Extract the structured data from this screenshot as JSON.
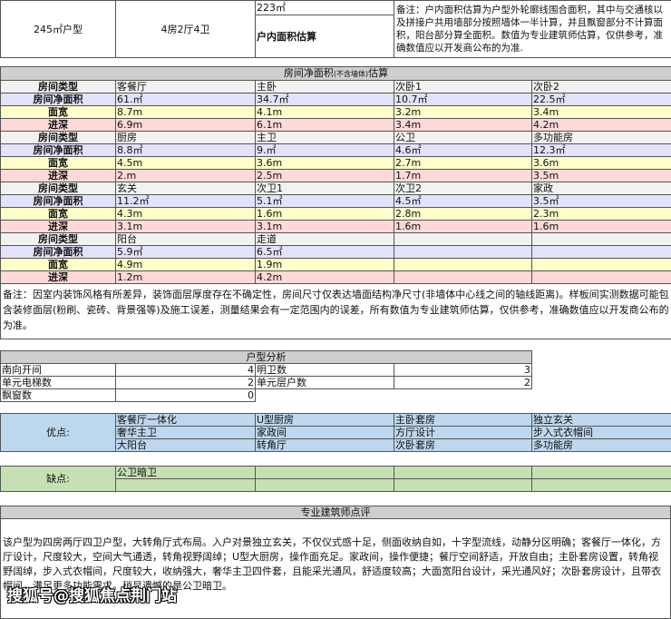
{
  "top": {
    "unit_type": "245㎡户型",
    "layout": "4房2厅4卫",
    "area_value": "223㎡",
    "area_label": "户内面积估算",
    "note": "备注：户内面积估算为户型外轮廓线围合面积，其中与交通核以及拼接户共用墙部分按照墙体一半计算，并且飘窗部分不计算面积，阳台部分算全面积。数值为专业建筑师估算，仅供参考，准确数值应以开发商公布的为准."
  },
  "rooms": {
    "title": "房间净面积",
    "title_small": "(不含墙体)",
    "title_end": "估算",
    "labels": {
      "type": "房间类型",
      "area": "房间净面积",
      "width": "面宽",
      "depth": "进深"
    },
    "groups": [
      {
        "type": [
          "客餐厅",
          "主卧",
          "次卧1",
          "次卧2"
        ],
        "area": [
          "61.㎡",
          "34.7㎡",
          "10.7㎡",
          "22.5㎡"
        ],
        "width": [
          "8.7m",
          "4.1m",
          "3.2m",
          "3.4m"
        ],
        "depth": [
          "6.9m",
          "6.1m",
          "3.4m",
          "4.2m"
        ]
      },
      {
        "type": [
          "厨房",
          "主卫",
          "公卫",
          "多功能房"
        ],
        "area": [
          "8.8㎡",
          "9.㎡",
          "4.6㎡",
          "12.3㎡"
        ],
        "width": [
          "4.5m",
          "3.6m",
          "2.7m",
          "3.6m"
        ],
        "depth": [
          "2.m",
          "2.5m",
          "1.7m",
          "3.5m"
        ]
      },
      {
        "type": [
          "玄关",
          "次卫1",
          "次卫2",
          "家政"
        ],
        "area": [
          "11.2㎡",
          "5.1㎡",
          "4.5㎡",
          "3.5㎡"
        ],
        "width": [
          "4.3m",
          "1.6m",
          "2.8m",
          "2.3m"
        ],
        "depth": [
          "3.1m",
          "3.1m",
          "1.6m",
          "1.6m"
        ]
      },
      {
        "type": [
          "阳台",
          "走道",
          "",
          ""
        ],
        "area": [
          "5.9㎡",
          "6.5㎡",
          "",
          ""
        ],
        "width": [
          "4.9m",
          "1.9m",
          "",
          ""
        ],
        "depth": [
          "1.2m",
          "4.2m",
          "",
          ""
        ]
      }
    ],
    "note": "备注：因室内装饰风格有所差异，装饰面层厚度存在不确定性，房间尺寸仅表达墙面结构净尺寸(非墙体中心线之间的轴线距离)。样板间实测数据可能包含装修面层(粉刷、瓷砖、背景强等)及施工误差，测量结果会有一定范围内的误差，所有数值为专业建筑师估算，仅供参考，准确数值应以开发商公布的为准。"
  },
  "analysis": {
    "title": "户型分析",
    "rows": [
      [
        "南向开间",
        "4",
        "明卫数",
        "3"
      ],
      [
        "单元电梯数",
        "2",
        "单元层户数",
        "2"
      ],
      [
        "飘窗数",
        "0"
      ]
    ]
  },
  "pros": {
    "label": "优点:",
    "items": [
      [
        "客餐厅一体化",
        "U型厨房",
        "主卧套房",
        "独立玄关"
      ],
      [
        "奢华主卫",
        "家政间",
        "方厅设计",
        "步入式衣帽间"
      ],
      [
        "大阳台",
        "转角厅",
        "次卧套房",
        "多功能房"
      ]
    ]
  },
  "cons": {
    "label": "缺点:",
    "items": [
      [
        "公卫暗卫",
        "",
        "",
        ""
      ],
      [
        "",
        "",
        "",
        ""
      ]
    ]
  },
  "review": {
    "title": "专业建筑师点评",
    "text": "该户型为四房两厅四卫户型，大转角厅式布局。入户对景独立玄关，不仅仪式感十足，侧面收纳自如，十字型流线，动静分区明确；客餐厅一体化，方厅设计，尺度较大，空间大气通透，转角视野阔绰；U型大厨房，操作面充足。家政间，操作便捷；餐厅空间舒适，开放自由；主卧套房设置，转角视野阔绰，步入式衣帽间，尺度较大，收纳强大，奢华主卫四件套，且能采光通风，舒适度较高；大面宽阳台设计，采光通风好；次卧套房设计，且带衣帽间，满足更多功能需求。稍显遗憾的是公卫暗卫。"
  },
  "watermark": "搜狐号@搜狐焦点荆门站",
  "colors": {
    "header": "#d0cece",
    "type_row": "#f2f2f2",
    "area_row": "#e2e2fb",
    "width_row": "#ffffcc",
    "depth_row": "#ffd9d9",
    "pros": "#bdd7ee",
    "cons": "#c6e0b4"
  }
}
